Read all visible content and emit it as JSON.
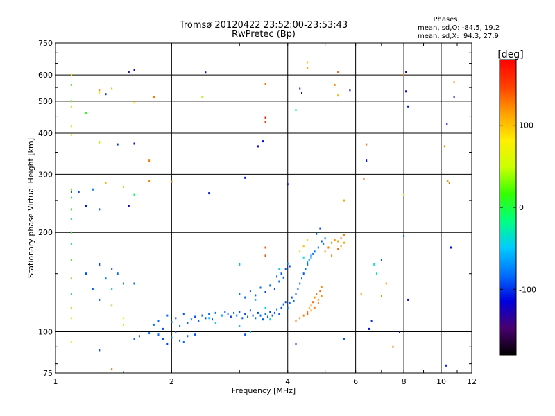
{
  "chart_data": {
    "type": "scatter",
    "title": "Tromsø 20120422 23:52:00-23:53:43",
    "subtitle": "RwPretec (Bp)",
    "xlabel": "Frequency [MHz]",
    "ylabel": "Stationary phase Virtual Height [km]",
    "x_scale": "log",
    "y_scale": "log",
    "xlim": [
      1,
      12
    ],
    "ylim": [
      75,
      750
    ],
    "x_ticks": [
      1,
      2,
      4,
      6,
      8,
      10,
      12
    ],
    "y_ticks": [
      75,
      100,
      200,
      300,
      400,
      500,
      600,
      750
    ],
    "grid": true,
    "stats": {
      "heading": "Phases",
      "line1": "mean, sd,O: -84.5, 19.2",
      "line2": "mean, sd,X:  94.3, 27.9"
    },
    "colorbar": {
      "label": "[deg]",
      "range": [
        -180,
        180
      ],
      "ticks": [
        100,
        0,
        -100
      ],
      "colormap": [
        "#000000",
        "#4a0070",
        "#0000dd",
        "#0070ff",
        "#00ccff",
        "#00ff80",
        "#33ff00",
        "#ccff00",
        "#ffee00",
        "#ffa000",
        "#ff4000",
        "#ff0000"
      ]
    },
    "series": [
      {
        "mode": "O",
        "points": [
          [
            1.8,
            105,
            -80
          ],
          [
            1.85,
            108,
            -85
          ],
          [
            1.9,
            102,
            -90
          ],
          [
            1.95,
            112,
            -80
          ],
          [
            2.0,
            107,
            -85
          ],
          [
            2.05,
            110,
            -95
          ],
          [
            2.1,
            104,
            -80
          ],
          [
            2.15,
            113,
            -90
          ],
          [
            2.2,
            106,
            -85
          ],
          [
            2.25,
            109,
            -80
          ],
          [
            2.3,
            111,
            -90
          ],
          [
            2.35,
            108,
            -85
          ],
          [
            2.4,
            112,
            -80
          ],
          [
            2.45,
            110,
            -95
          ],
          [
            2.5,
            113,
            -85
          ],
          [
            2.55,
            109,
            -90
          ],
          [
            2.6,
            114,
            -80
          ],
          [
            2.7,
            112,
            -85
          ],
          [
            2.75,
            115,
            -90
          ],
          [
            2.8,
            113,
            -80
          ],
          [
            2.85,
            111,
            -95
          ],
          [
            2.9,
            114,
            -85
          ],
          [
            2.95,
            112,
            -80
          ],
          [
            3.0,
            115,
            -90
          ],
          [
            3.05,
            110,
            -85
          ],
          [
            3.1,
            113,
            -95
          ],
          [
            3.15,
            111,
            -80
          ],
          [
            3.2,
            116,
            -85
          ],
          [
            3.25,
            112,
            -90
          ],
          [
            3.3,
            110,
            -80
          ],
          [
            3.35,
            114,
            -95
          ],
          [
            3.4,
            112,
            -85
          ],
          [
            3.45,
            109,
            -90
          ],
          [
            3.5,
            113,
            -80
          ],
          [
            3.55,
            111,
            -85
          ],
          [
            3.6,
            115,
            -95
          ],
          [
            3.65,
            112,
            -85
          ],
          [
            3.7,
            114,
            -90
          ],
          [
            3.75,
            117,
            -80
          ],
          [
            3.8,
            113,
            -85
          ],
          [
            3.85,
            118,
            -90
          ],
          [
            3.9,
            121,
            -80
          ],
          [
            3.95,
            123,
            -95
          ],
          [
            4.0,
            118,
            -85
          ],
          [
            1.85,
            98,
            -85
          ],
          [
            1.9,
            95,
            -90
          ],
          [
            2.0,
            96,
            -80
          ],
          [
            1.95,
            92,
            -95
          ],
          [
            2.05,
            100,
            -85
          ],
          [
            2.1,
            94,
            -90
          ],
          [
            1.75,
            99,
            -80
          ],
          [
            1.65,
            97,
            -90
          ],
          [
            1.6,
            95,
            -85
          ],
          [
            2.2,
            97,
            -80
          ],
          [
            2.15,
            93,
            -85
          ],
          [
            3.0,
            130,
            -80
          ],
          [
            3.1,
            127,
            -85
          ],
          [
            3.2,
            133,
            -90
          ],
          [
            3.3,
            129,
            -80
          ],
          [
            3.4,
            136,
            -85
          ],
          [
            3.5,
            132,
            -95
          ],
          [
            3.6,
            138,
            -85
          ],
          [
            3.7,
            135,
            -90
          ],
          [
            3.8,
            142,
            -80
          ],
          [
            3.9,
            146,
            -85
          ],
          [
            3.95,
            155,
            -90
          ],
          [
            4.0,
            161,
            -80
          ],
          [
            4.05,
            158,
            -95
          ],
          [
            3.85,
            150,
            -85
          ],
          [
            3.75,
            147,
            -90
          ],
          [
            4.05,
            122,
            -85
          ],
          [
            4.1,
            127,
            -90
          ],
          [
            4.15,
            124,
            -80
          ],
          [
            4.2,
            130,
            -85
          ],
          [
            4.25,
            135,
            -90
          ],
          [
            4.3,
            140,
            -80
          ],
          [
            4.35,
            145,
            -85
          ],
          [
            4.4,
            150,
            -90
          ],
          [
            4.45,
            155,
            -80
          ],
          [
            4.5,
            160,
            -85
          ],
          [
            4.55,
            165,
            -95
          ],
          [
            4.6,
            170,
            -85
          ],
          [
            4.7,
            175,
            -80
          ],
          [
            4.8,
            180,
            -85
          ],
          [
            4.9,
            188,
            -90
          ],
          [
            5.0,
            192,
            -80
          ],
          [
            4.75,
            198,
            -85
          ],
          [
            4.85,
            205,
            -90
          ],
          [
            4.95,
            185,
            -80
          ],
          [
            4.65,
            172,
            -75
          ],
          [
            4.6,
            168,
            -70
          ],
          [
            4.5,
            163,
            -60
          ],
          [
            1.2,
            150,
            -90
          ],
          [
            1.25,
            135,
            -85
          ],
          [
            1.3,
            160,
            -95
          ],
          [
            1.35,
            145,
            -80
          ],
          [
            1.45,
            150,
            -85
          ],
          [
            1.5,
            140,
            -80
          ],
          [
            1.4,
            155,
            -90
          ],
          [
            1.3,
            125,
            -85
          ],
          [
            1.6,
            140,
            -85
          ],
          [
            1.25,
            270,
            -80
          ],
          [
            1.15,
            265,
            -95
          ],
          [
            1.2,
            240,
            -110
          ],
          [
            1.3,
            235,
            -85
          ],
          [
            1.55,
            240,
            -120
          ],
          [
            1.45,
            370,
            -100
          ],
          [
            1.6,
            372,
            -110
          ],
          [
            1.6,
            620,
            -120
          ],
          [
            1.55,
            612,
            -140
          ],
          [
            2.45,
            610,
            -130
          ],
          [
            3.35,
            365,
            -120
          ],
          [
            3.45,
            378,
            -110
          ],
          [
            3.1,
            293,
            -110
          ],
          [
            2.5,
            263,
            -110
          ],
          [
            4.35,
            530,
            -110
          ],
          [
            4.3,
            545,
            -105
          ],
          [
            5.8,
            540,
            -120
          ],
          [
            6.4,
            330,
            -110
          ],
          [
            8.1,
            535,
            -120
          ],
          [
            8.2,
            480,
            -110
          ],
          [
            8.1,
            612,
            -120
          ],
          [
            10.35,
            425,
            -115
          ],
          [
            10.8,
            515,
            -110
          ],
          [
            10.6,
            180,
            -110
          ],
          [
            1.1,
            265,
            -90
          ],
          [
            1.35,
            525,
            -100
          ],
          [
            4.0,
            280,
            -110
          ],
          [
            8.0,
            195,
            -90
          ],
          [
            7.0,
            165,
            -90
          ],
          [
            6.5,
            102,
            -110
          ],
          [
            6.6,
            108,
            -100
          ],
          [
            7.8,
            100,
            -110
          ],
          [
            8.2,
            125,
            -120
          ],
          [
            10.3,
            79,
            -110
          ],
          [
            5.6,
            95,
            -90
          ],
          [
            4.2,
            92,
            -100
          ],
          [
            3.1,
            98,
            -90
          ]
        ]
      },
      {
        "mode": "X",
        "points": [
          [
            4.2,
            108,
            130
          ],
          [
            4.3,
            110,
            120
          ],
          [
            4.4,
            112,
            125
          ],
          [
            4.5,
            115,
            130
          ],
          [
            4.55,
            118,
            110
          ],
          [
            4.6,
            120,
            125
          ],
          [
            4.65,
            123,
            135
          ],
          [
            4.7,
            127,
            120
          ],
          [
            4.75,
            130,
            130
          ],
          [
            4.8,
            125,
            115
          ],
          [
            4.5,
            113,
            140
          ],
          [
            4.6,
            116,
            120
          ],
          [
            4.7,
            118,
            125
          ],
          [
            4.8,
            122,
            130
          ],
          [
            4.9,
            128,
            120
          ],
          [
            4.85,
            133,
            135
          ],
          [
            4.9,
            137,
            125
          ],
          [
            5.0,
            175,
            120
          ],
          [
            5.1,
            180,
            130
          ],
          [
            5.2,
            186,
            125
          ],
          [
            5.3,
            190,
            120
          ],
          [
            5.4,
            188,
            115
          ],
          [
            5.5,
            192,
            130
          ],
          [
            5.6,
            196,
            125
          ],
          [
            5.5,
            182,
            120
          ],
          [
            5.4,
            178,
            135
          ],
          [
            5.6,
            186,
            110
          ],
          [
            5.2,
            170,
            125
          ],
          [
            4.5,
            190,
            90
          ],
          [
            4.4,
            182,
            100
          ],
          [
            4.3,
            175,
            95
          ],
          [
            1.1,
            600,
            80
          ],
          [
            1.3,
            540,
            120
          ],
          [
            1.4,
            545,
            110
          ],
          [
            1.8,
            515,
            125
          ],
          [
            3.5,
            565,
            130
          ],
          [
            4.5,
            630,
            110
          ],
          [
            5.4,
            612,
            140
          ],
          [
            5.3,
            560,
            120
          ],
          [
            5.4,
            520,
            110
          ],
          [
            8.0,
            600,
            130
          ],
          [
            10.2,
            365,
            120
          ],
          [
            10.5,
            282,
            130
          ],
          [
            10.8,
            570,
            120
          ],
          [
            3.5,
            445,
            160
          ],
          [
            3.5,
            432,
            150
          ],
          [
            3.5,
            180,
            140
          ],
          [
            3.5,
            170,
            140
          ],
          [
            1.1,
            110,
            80
          ],
          [
            1.1,
            93,
            70
          ],
          [
            1.5,
            105,
            90
          ],
          [
            1.8,
            515,
            130
          ],
          [
            1.75,
            287,
            125
          ],
          [
            1.35,
            283,
            110
          ],
          [
            1.5,
            275,
            105
          ],
          [
            5.6,
            250,
            110
          ],
          [
            6.3,
            290,
            140
          ],
          [
            6.4,
            370,
            130
          ],
          [
            7.0,
            128,
            120
          ],
          [
            7.2,
            140,
            120
          ],
          [
            7.5,
            90,
            130
          ],
          [
            8.0,
            260,
            100
          ],
          [
            10.4,
            287,
            120
          ],
          [
            6.2,
            130,
            120
          ],
          [
            1.75,
            330,
            130
          ],
          [
            2.0,
            285,
            130
          ],
          [
            1.4,
            77,
            140
          ],
          [
            4.5,
            655,
            95
          ]
        ]
      },
      {
        "mode": "mixed",
        "points": [
          [
            1.1,
            220,
            -10
          ],
          [
            1.1,
            235,
            5
          ],
          [
            1.1,
            200,
            10
          ],
          [
            1.1,
            185,
            -20
          ],
          [
            1.1,
            165,
            20
          ],
          [
            1.1,
            145,
            30
          ],
          [
            1.1,
            130,
            -30
          ],
          [
            1.1,
            118,
            40
          ],
          [
            1.1,
            500,
            30
          ],
          [
            1.1,
            480,
            40
          ],
          [
            1.1,
            420,
            60
          ],
          [
            1.1,
            395,
            70
          ],
          [
            1.1,
            560,
            20
          ],
          [
            1.1,
            270,
            25
          ],
          [
            1.2,
            460,
            10
          ],
          [
            1.3,
            530,
            60
          ],
          [
            1.3,
            375,
            45
          ],
          [
            1.5,
            110,
            60
          ],
          [
            1.4,
            120,
            30
          ],
          [
            1.6,
            495,
            80
          ],
          [
            2.4,
            515,
            40
          ],
          [
            4.2,
            470,
            -30
          ],
          [
            4.4,
            168,
            -40
          ],
          [
            4.55,
            165,
            -50
          ],
          [
            2.5,
            110,
            -50
          ],
          [
            2.6,
            106,
            -45
          ],
          [
            2.7,
            112,
            -55
          ],
          [
            3.0,
            104,
            -50
          ],
          [
            3.2,
            100,
            -40
          ],
          [
            3.5,
            118,
            -45
          ],
          [
            3.6,
            109,
            -50
          ],
          [
            1.6,
            260,
            -10
          ],
          [
            1.1,
            255,
            -5
          ],
          [
            3.0,
            160,
            -55
          ],
          [
            3.3,
            125,
            -50
          ],
          [
            1.4,
            135,
            -60
          ],
          [
            3.8,
            155,
            -40
          ],
          [
            6.7,
            160,
            -40
          ],
          [
            6.8,
            150,
            -30
          ],
          [
            1.3,
            88,
            -90
          ],
          [
            2.3,
            98,
            -90
          ]
        ]
      }
    ]
  }
}
